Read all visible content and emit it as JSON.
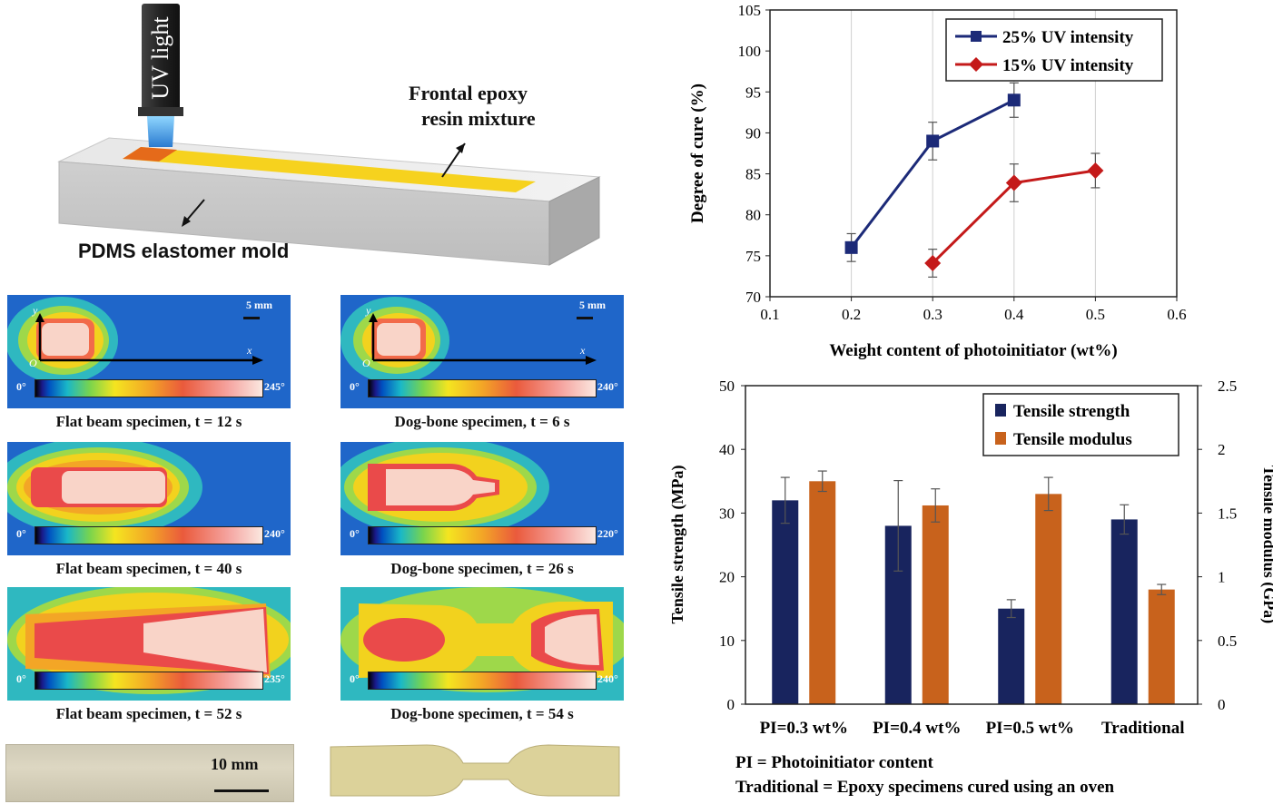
{
  "schematic": {
    "uv_label": "UV light",
    "resin_label_line1": "Frontal epoxy",
    "resin_label_line2": "resin mixture",
    "mold_label": "PDMS elastomer mold"
  },
  "thermal_panels": [
    {
      "caption": "Flat beam specimen, t = 12 s",
      "cmin": "0°",
      "cmax": "245°",
      "scale": "5 mm",
      "shape": "flat-early"
    },
    {
      "caption": "Dog-bone specimen, t = 6 s",
      "cmin": "0°",
      "cmax": "240°",
      "scale": "5 mm",
      "shape": "dog-early"
    },
    {
      "caption": "Flat beam specimen, t = 40 s",
      "cmin": "0°",
      "cmax": "240°",
      "shape": "flat-mid"
    },
    {
      "caption": "Dog-bone specimen, t = 26 s",
      "cmin": "0°",
      "cmax": "220°",
      "shape": "dog-mid"
    },
    {
      "caption": "Flat beam specimen, t = 52 s",
      "cmin": "0°",
      "cmax": "235°",
      "shape": "flat-late"
    },
    {
      "caption": "Dog-bone specimen, t = 54 s",
      "cmin": "0°",
      "cmax": "240°",
      "shape": "dog-late"
    }
  ],
  "axes_labels": {
    "y": "y",
    "x": "x",
    "origin": "O"
  },
  "photo_scale": "10 mm",
  "chart_data": [
    {
      "type": "line",
      "xlabel": "Weight content of photoinitiator (wt%)",
      "ylabel": "Degree of cure (%)",
      "xlim": [
        0.1,
        0.6
      ],
      "ylim": [
        70,
        105
      ],
      "xticks": [
        "0.1",
        "0.2",
        "0.3",
        "0.4",
        "0.5",
        "0.6"
      ],
      "yticks": [
        "70",
        "75",
        "80",
        "85",
        "90",
        "95",
        "100",
        "105"
      ],
      "grid": "vertical",
      "legend_position": "top-right",
      "series": [
        {
          "name": "25% UV intensity",
          "color": "#1c2a78",
          "marker": "square",
          "x": [
            0.2,
            0.3,
            0.4
          ],
          "y": [
            76,
            89,
            94
          ],
          "err": [
            1.7,
            2.3,
            2.1
          ]
        },
        {
          "name": "15% UV intensity",
          "color": "#c41a1a",
          "marker": "diamond",
          "x": [
            0.3,
            0.4,
            0.5
          ],
          "y": [
            74.1,
            83.9,
            85.4
          ],
          "err": [
            1.7,
            2.3,
            2.1
          ]
        }
      ]
    },
    {
      "type": "bar",
      "categories": [
        "PI=0.3 wt%",
        "PI=0.4 wt%",
        "PI=0.5 wt%",
        "Traditional"
      ],
      "ylabel": "Tensile strength (MPa)",
      "y2label": "Tensile modulus (GPa)",
      "ylim": [
        0,
        50
      ],
      "y2lim": [
        0,
        2.5
      ],
      "yticks": [
        "0",
        "10",
        "20",
        "30",
        "40",
        "50"
      ],
      "y2ticks": [
        "0",
        "0.5",
        "1",
        "1.5",
        "2",
        "2.5"
      ],
      "legend_position": "top-right",
      "series": [
        {
          "name": "Tensile strength",
          "axis": "left",
          "color": "#18245e",
          "values": [
            32,
            28,
            15,
            29
          ],
          "err": [
            3.6,
            7.1,
            1.4,
            2.3
          ]
        },
        {
          "name": "Tensile modulus",
          "axis": "right",
          "color": "#c8621c",
          "values": [
            1.75,
            1.56,
            1.65,
            0.9
          ],
          "err": [
            0.08,
            0.13,
            0.13,
            0.04
          ]
        }
      ],
      "footnotes": [
        "PI = Photoinitiator content",
        "Traditional = Epoxy specimens cured using an oven"
      ]
    }
  ]
}
